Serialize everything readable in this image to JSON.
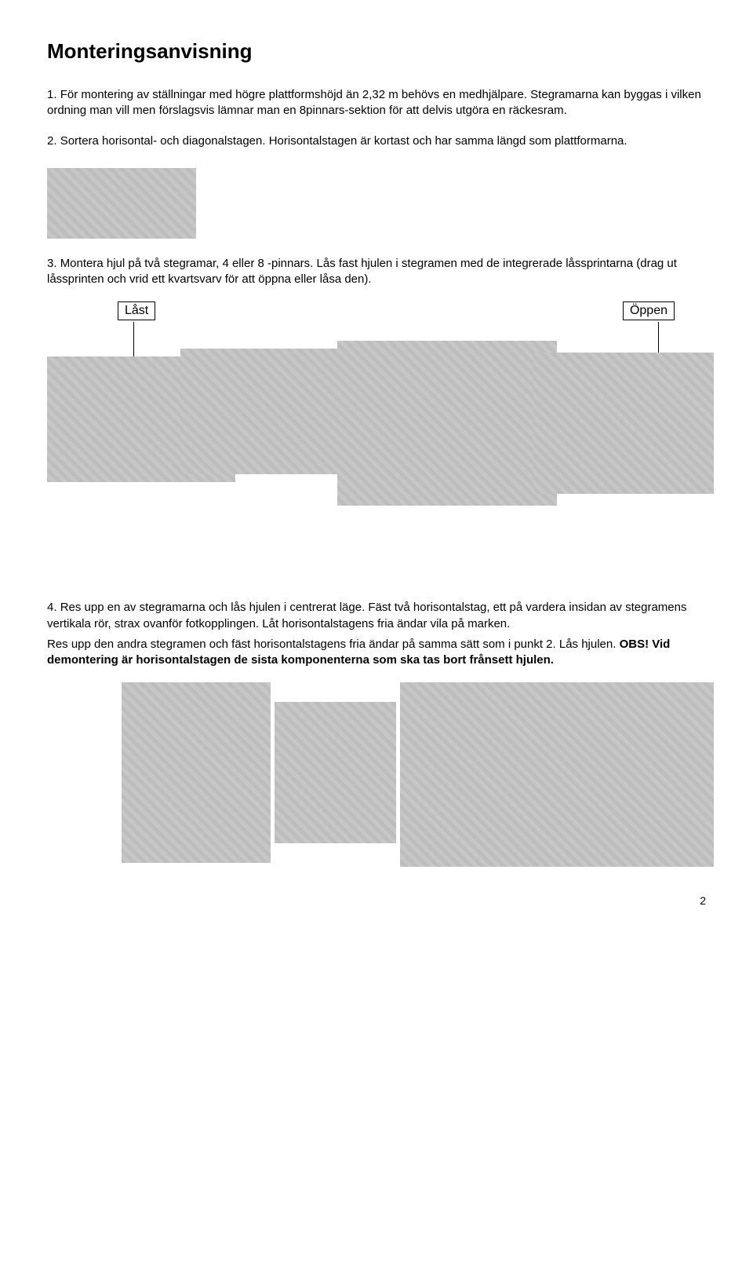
{
  "title": "Monteringsanvisning",
  "steps": {
    "s1": {
      "num": "1.",
      "text": "För montering av ställningar med högre plattformshöjd än 2,32 m behövs en medhjälpare. Stegramarna kan byggas i vilken ordning man vill men förslagsvis lämnar man en 8pinnars-sektion för att delvis utgöra en räckesram."
    },
    "s2": {
      "num": "2.",
      "text": "Sortera horisontal- och diagonalstagen. Horisontalstagen är kortast och har samma längd som plattformarna."
    },
    "s3": {
      "num": "3.",
      "text": "Montera hjul på två stegramar, 4 eller 8 -pinnars. Lås fast hjulen i stegramen med de integrerade låssprintarna (drag ut låssprinten och vrid ett kvartsvarv för att öppna eller låsa den)."
    },
    "s4": {
      "num": "4.",
      "text": "Res upp en av stegramarna och lås hjulen i centrerat läge. Fäst två horisontalstag, ett på vardera insidan av stegramens vertikala rör, strax ovanför fotkopplingen. Låt horisontalstagens fria ändar vila på marken.",
      "para2_a": "Res upp den andra stegramen och fäst horisontalstagens fria ändar på samma sätt som i punkt 2. Lås hjulen. ",
      "para2_b_bold": "OBS! Vid demontering är horisontalstagen de sista komponenterna som ska tas bort frånsett hjulen."
    }
  },
  "labels": {
    "locked": "Låst",
    "open": "Öppen"
  },
  "page_number": "2"
}
